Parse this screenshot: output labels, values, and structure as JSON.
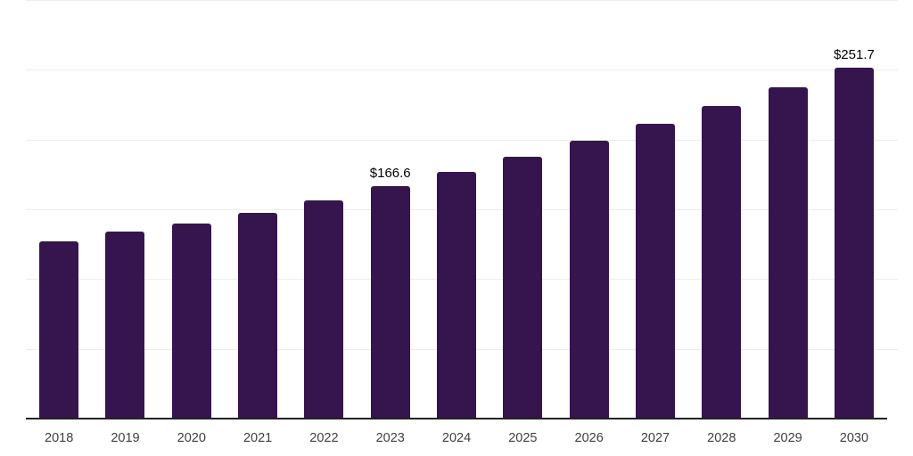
{
  "chart_data": {
    "type": "bar",
    "title": "",
    "xlabel": "",
    "ylabel": "",
    "categories": [
      "2018",
      "2019",
      "2020",
      "2021",
      "2022",
      "2023",
      "2024",
      "2025",
      "2026",
      "2027",
      "2028",
      "2029",
      "2030"
    ],
    "values": [
      127.1,
      134.0,
      140.1,
      147.2,
      156.6,
      166.6,
      177.0,
      187.5,
      199.3,
      211.0,
      223.8,
      237.3,
      251.7
    ],
    "data_labels": {
      "2023": "$166.6",
      "2030": "$251.7"
    },
    "ylim": [
      0,
      300
    ],
    "gridline_step": 50,
    "grid": true,
    "y_axis_tick_labels_visible": false,
    "legend": null,
    "colors": {
      "bar": "#36154e",
      "gridline": "#ededed",
      "axis_line": "#222222",
      "data_label": "#000000",
      "tick_label": "#3f3f3f",
      "background": "#ffffff"
    }
  }
}
